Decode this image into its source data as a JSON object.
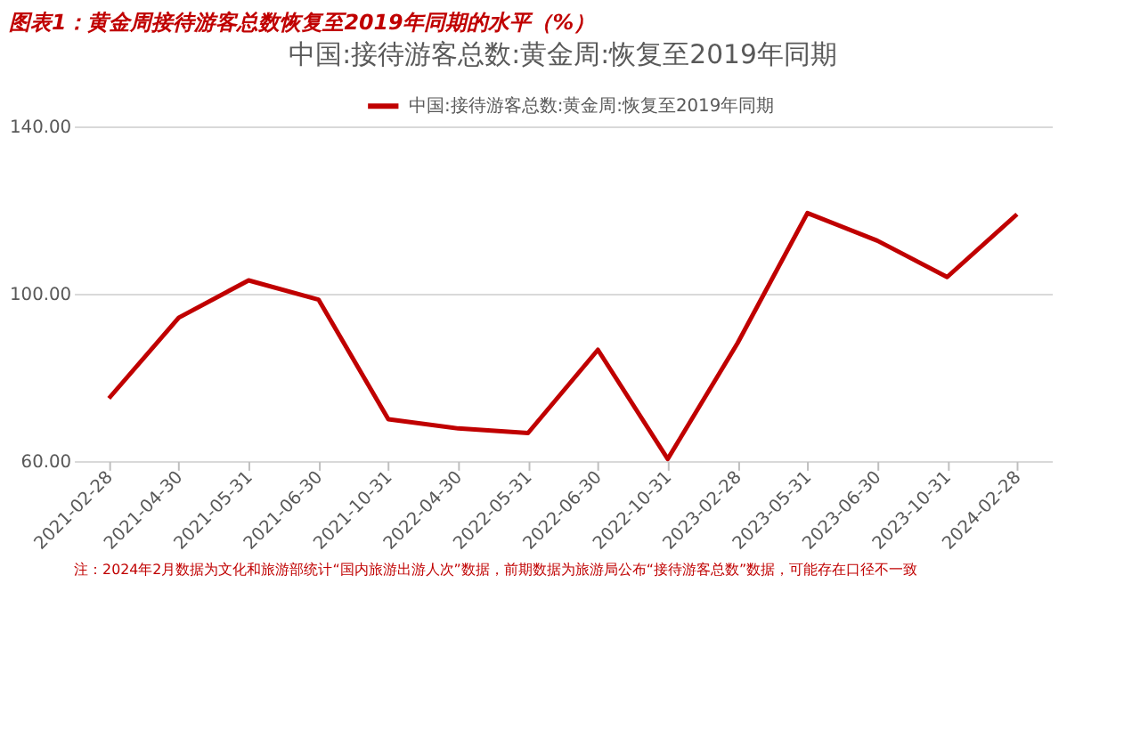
{
  "chart_data": {
    "type": "line",
    "title": "图表1：黄金周接待游客总数恢复至2019年同期的水平（%）",
    "subtitle": "中国:接待游客总数:黄金周:恢复至2019年同期",
    "categories": [
      "2021-02-28",
      "2021-04-30",
      "2021-05-31",
      "2021-06-30",
      "2021-10-31",
      "2022-04-30",
      "2022-05-31",
      "2022-06-30",
      "2022-10-31",
      "2023-02-28",
      "2023-05-31",
      "2023-06-30",
      "2023-10-31",
      "2024-02-28"
    ],
    "series": [
      {
        "name": "中国:接待游客总数:黄金周:恢复至2019年同期",
        "color": "#c00000",
        "values": [
          75.0,
          94.3,
          103.2,
          98.6,
          70.0,
          67.8,
          66.7,
          86.6,
          60.5,
          88.2,
          119.3,
          112.7,
          104.0,
          119.0
        ]
      }
    ],
    "ylim": [
      60,
      140
    ],
    "yticks": [
      {
        "value": 60,
        "label": "60.00"
      },
      {
        "value": 100,
        "label": "100.00"
      },
      {
        "value": 140,
        "label": "140.00"
      }
    ],
    "grid": "y",
    "legend": "top",
    "marker": "none",
    "line_style": "solid",
    "annotations": [
      "注：2024年2月数据为文化和旅游部统计“国内旅游出游人次”数据，前期数据为旅游局公布“接待游客总数”数据，可能存在口径不一致"
    ]
  }
}
